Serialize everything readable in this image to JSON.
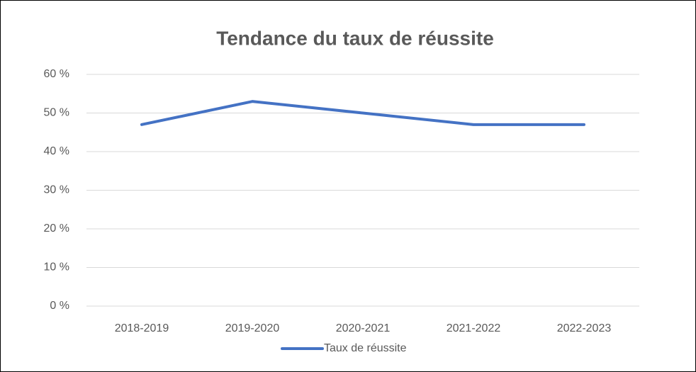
{
  "chart_data": {
    "type": "line",
    "title": "Tendance du taux de réussite",
    "categories": [
      "2018-2019",
      "2019-2020",
      "2020-2021",
      "2021-2022",
      "2022-2023"
    ],
    "series": [
      {
        "name": "Taux de réussite",
        "color": "#4472c4",
        "values": [
          47,
          53,
          50,
          47,
          47
        ]
      }
    ],
    "ylim": [
      0,
      60
    ],
    "yticks": [
      {
        "value": 0,
        "label": "0 %"
      },
      {
        "value": 10,
        "label": "10 %"
      },
      {
        "value": 20,
        "label": "20 %"
      },
      {
        "value": 30,
        "label": "30 %"
      },
      {
        "value": 40,
        "label": "40 %"
      },
      {
        "value": 50,
        "label": "50 %"
      },
      {
        "value": 60,
        "label": "60 %"
      }
    ],
    "grid": true,
    "legend": "bottom"
  }
}
